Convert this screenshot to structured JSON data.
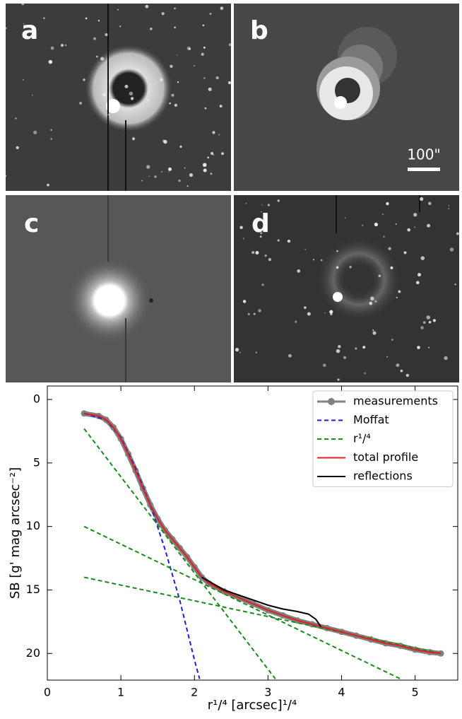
{
  "panels": [
    {
      "label": "a"
    },
    {
      "label": "b",
      "scale_bar": "100\""
    },
    {
      "label": "c"
    },
    {
      "label": "d"
    }
  ],
  "chart_data": {
    "type": "line",
    "xlabel": "r¹/⁴ [arcsec]¹/⁴",
    "ylabel": "SB [g' mag arcsec⁻²]",
    "xlim": [
      0,
      5.58
    ],
    "ylim": [
      -1.06,
      22.1
    ],
    "y_inverted": true,
    "xticks": [
      0,
      1,
      2,
      3,
      4,
      5
    ],
    "yticks": [
      0,
      5,
      10,
      15,
      20
    ],
    "legend": "upper right",
    "series": [
      {
        "name": "measurements",
        "color": "#808080",
        "marker": true,
        "x": [
          0.5,
          0.7,
          0.8,
          0.9,
          1.0,
          1.1,
          1.2,
          1.3,
          1.4,
          1.5,
          1.6,
          1.7,
          1.8,
          1.9,
          2.0,
          2.1,
          2.2,
          2.4,
          2.6,
          2.8,
          3.0,
          3.2,
          3.4,
          3.6,
          3.8,
          4.0,
          4.2,
          4.4,
          4.6,
          4.8,
          5.0,
          5.2,
          5.35
        ],
        "values": [
          1.1,
          1.3,
          1.6,
          2.2,
          3.1,
          4.3,
          5.6,
          7.0,
          8.3,
          9.4,
          10.3,
          11.0,
          11.7,
          12.4,
          13.2,
          14.0,
          14.5,
          15.1,
          15.6,
          16.1,
          16.6,
          17.0,
          17.4,
          17.7,
          18.0,
          18.3,
          18.6,
          18.9,
          19.2,
          19.4,
          19.7,
          19.9,
          20.0
        ]
      },
      {
        "name": "Moffat",
        "color": "#1f1fd6",
        "dash": true,
        "x": [
          0.5,
          0.8,
          1.0,
          1.2,
          1.4,
          1.6,
          1.8,
          2.0,
          2.07
        ],
        "values": [
          1.1,
          1.6,
          3.0,
          5.4,
          8.3,
          11.8,
          15.8,
          20.5,
          22.0
        ]
      },
      {
        "name": "r¹/⁴",
        "color": "#1a8a1a",
        "dash": true,
        "x": [
          0.5,
          3.1
        ],
        "values": [
          2.3,
          22.0
        ]
      },
      {
        "color": "#1a8a1a",
        "dash": true,
        "x": [
          0.5,
          4.8
        ],
        "values": [
          10.0,
          22.0
        ]
      },
      {
        "color": "#1a8a1a",
        "dash": true,
        "x": [
          0.5,
          5.35
        ],
        "values": [
          14.0,
          20.0
        ]
      },
      {
        "name": "total profile",
        "color": "#e02020",
        "x": [
          0.5,
          0.7,
          0.8,
          0.9,
          1.0,
          1.1,
          1.2,
          1.3,
          1.4,
          1.5,
          1.6,
          1.7,
          1.8,
          1.9,
          2.0,
          2.1,
          2.2,
          2.4,
          2.6,
          2.8,
          3.0,
          3.2,
          3.4,
          3.6,
          3.8,
          4.0,
          4.2,
          4.4,
          4.6,
          4.8,
          5.0,
          5.2,
          5.35
        ],
        "values": [
          1.1,
          1.3,
          1.6,
          2.2,
          3.1,
          4.3,
          5.6,
          7.0,
          8.3,
          9.4,
          10.3,
          11.0,
          11.7,
          12.4,
          13.2,
          14.0,
          14.5,
          15.1,
          15.6,
          16.1,
          16.6,
          17.0,
          17.4,
          17.7,
          18.0,
          18.3,
          18.6,
          18.9,
          19.2,
          19.4,
          19.7,
          19.9,
          20.0
        ]
      },
      {
        "name": "reflections",
        "color": "#000000",
        "x": [
          2.1,
          2.4,
          2.7,
          3.0,
          3.2,
          3.4,
          3.55,
          3.65,
          3.72
        ],
        "values": [
          14.0,
          15.0,
          15.6,
          16.2,
          16.5,
          16.7,
          16.9,
          17.3,
          17.9
        ]
      }
    ]
  }
}
